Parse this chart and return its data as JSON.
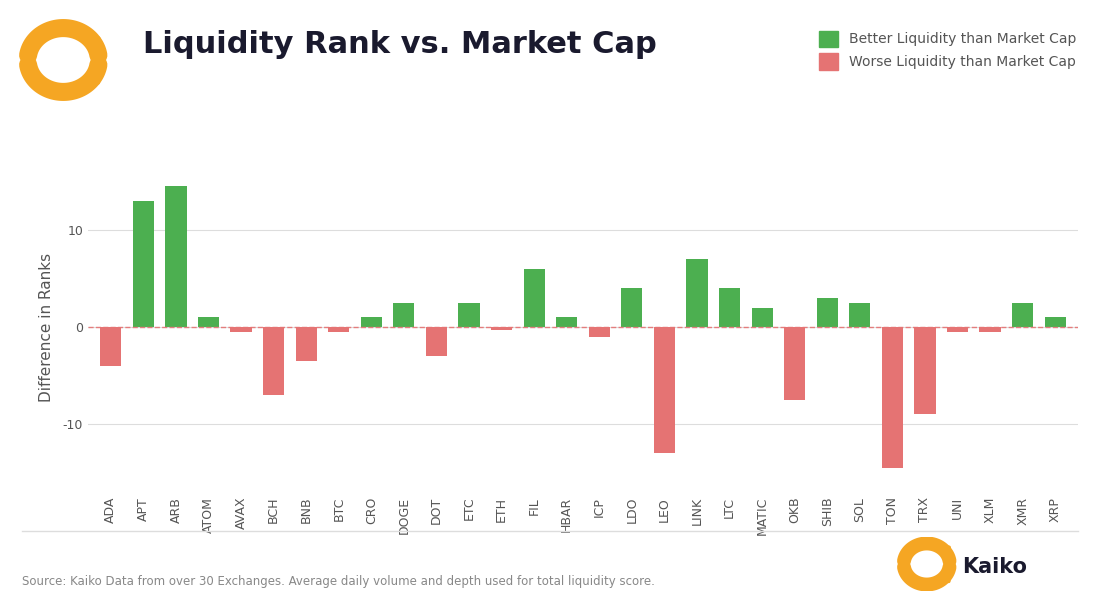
{
  "categories": [
    "ADA",
    "APT",
    "ARB",
    "ATOM",
    "AVAX",
    "BCH",
    "BNB",
    "BTC",
    "CRO",
    "DOGE",
    "DOT",
    "ETC",
    "ETH",
    "FIL",
    "HBAR",
    "ICP",
    "LDO",
    "LEO",
    "LINK",
    "LTC",
    "MATIC",
    "OKB",
    "SHIB",
    "SOL",
    "TON",
    "TRX",
    "UNI",
    "XLM",
    "XMR",
    "XRP"
  ],
  "values": [
    -4.0,
    13.0,
    14.5,
    1.0,
    -0.5,
    -7.0,
    -3.5,
    -0.5,
    1.0,
    2.5,
    -3.0,
    2.5,
    -0.3,
    6.0,
    1.0,
    -1.0,
    4.0,
    -13.0,
    7.0,
    4.0,
    2.0,
    -7.5,
    3.0,
    2.5,
    -14.5,
    -9.0,
    -0.5,
    -0.5,
    2.5,
    1.0
  ],
  "green_color": "#4CAF50",
  "red_color": "#E57373",
  "zero_line_color": "#E57373",
  "title": "Liquidity Rank vs. Market Cap",
  "ylabel": "Difference in Ranks",
  "legend_better": "Better Liquidity than Market Cap",
  "legend_worse": "Worse Liquidity than Market Cap",
  "source_text": "Source: Kaiko Data from over 30 Exchanges. Average daily volume and depth used for total liquidity score.",
  "ylim_min": -17,
  "ylim_max": 17,
  "yticks": [
    -10,
    0,
    10
  ],
  "background_color": "#ffffff",
  "grid_color": "#dddddd",
  "title_fontsize": 22,
  "axis_label_fontsize": 11,
  "tick_fontsize": 9,
  "legend_fontsize": 10,
  "source_fontsize": 8.5,
  "logo_color": "#F5A623",
  "kaiko_text_color": "#1a1a2e"
}
